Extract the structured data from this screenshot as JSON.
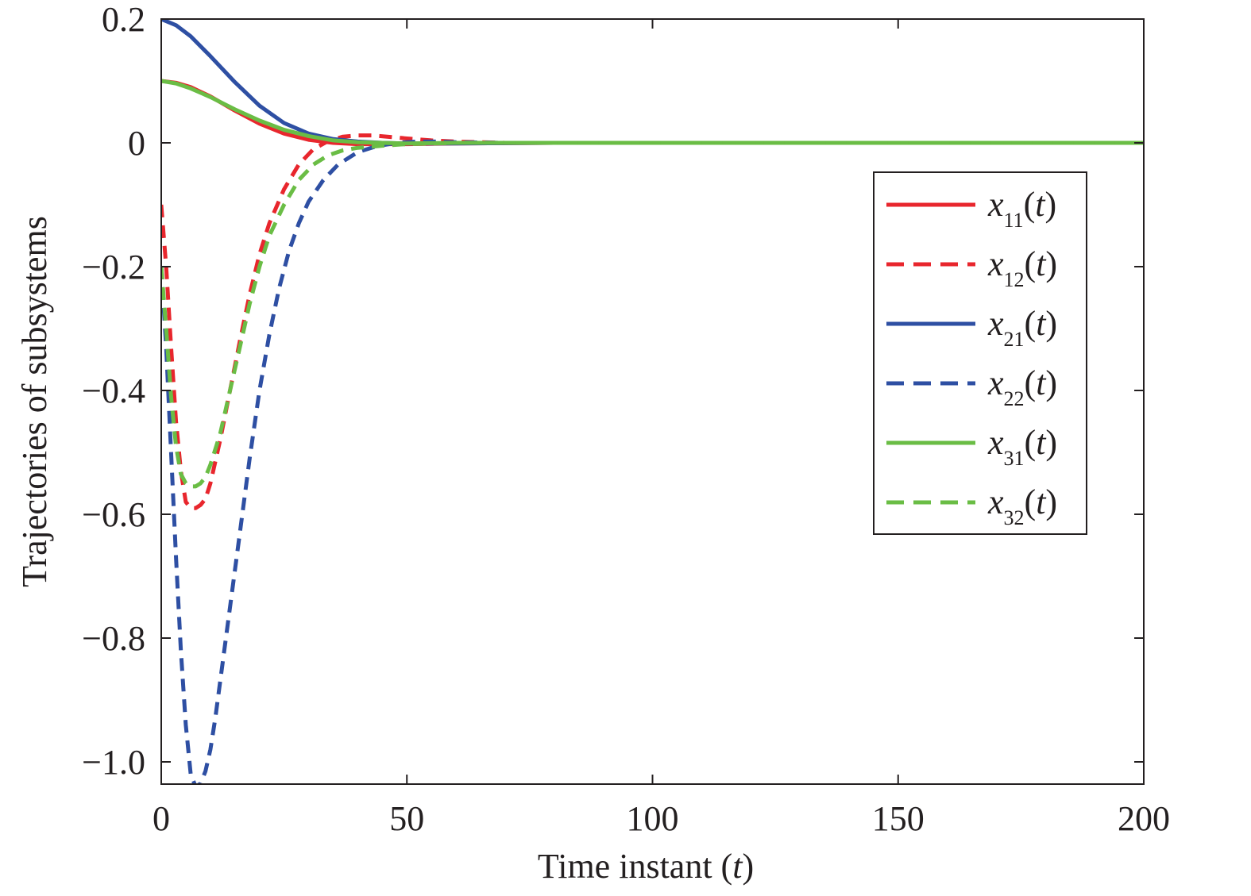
{
  "chart_data": {
    "type": "line",
    "title": "",
    "xlabel": "Time instant (",
    "xlabel_var": "t",
    "xlabel_close": ")",
    "ylabel": "Trajectories of subsystems",
    "xlim": [
      0,
      200
    ],
    "ylim": [
      -1.04,
      0.2
    ],
    "xticks": [
      0,
      50,
      100,
      150,
      200
    ],
    "xtick_labels": [
      "0",
      "50",
      "100",
      "150",
      "200"
    ],
    "yticks": [
      0.2,
      0,
      -0.2,
      -0.4,
      -0.6,
      -0.8,
      -1.0
    ],
    "ytick_labels": [
      "0.2",
      "0",
      "−0.2",
      "−0.4",
      "−0.6",
      "−0.8",
      "−1.0"
    ],
    "grid": false,
    "legend_position": "right",
    "series": [
      {
        "name": "x11(t)",
        "label_base": "x",
        "label_sub": "11",
        "label_tail": "(t)",
        "color": "#e8262d",
        "dashed": false,
        "x": [
          0,
          3,
          6,
          10,
          15,
          20,
          25,
          30,
          35,
          40,
          50,
          60,
          80,
          100,
          150,
          200
        ],
        "y": [
          0.1,
          0.097,
          0.09,
          0.075,
          0.052,
          0.031,
          0.015,
          0.005,
          0.0,
          -0.002,
          -0.002,
          -0.001,
          0,
          0,
          0,
          0
        ]
      },
      {
        "name": "x12(t)",
        "label_base": "x",
        "label_sub": "12",
        "label_tail": "(t)",
        "color": "#e8262d",
        "dashed": true,
        "x": [
          0,
          1,
          2,
          3,
          4,
          5,
          6,
          7,
          8,
          9,
          10,
          12,
          14,
          16,
          18,
          20,
          22,
          25,
          28,
          31,
          34,
          37,
          40,
          43,
          46,
          50,
          55,
          60,
          70,
          80,
          100,
          150,
          200
        ],
        "y": [
          -0.1,
          -0.2,
          -0.33,
          -0.45,
          -0.53,
          -0.58,
          -0.59,
          -0.59,
          -0.585,
          -0.575,
          -0.55,
          -0.48,
          -0.4,
          -0.32,
          -0.245,
          -0.18,
          -0.13,
          -0.075,
          -0.035,
          -0.01,
          0.003,
          0.01,
          0.012,
          0.012,
          0.01,
          0.007,
          0.004,
          0.002,
          0.0,
          0,
          0,
          0,
          0
        ]
      },
      {
        "name": "x21(t)",
        "label_base": "x",
        "label_sub": "21",
        "label_tail": "(t)",
        "color": "#2e4fa3",
        "dashed": false,
        "x": [
          0,
          3,
          6,
          10,
          15,
          20,
          25,
          30,
          35,
          40,
          45,
          50,
          60,
          80,
          100,
          150,
          200
        ],
        "y": [
          0.2,
          0.19,
          0.172,
          0.14,
          0.098,
          0.06,
          0.032,
          0.015,
          0.006,
          0.002,
          0.0,
          -0.001,
          -0.001,
          0,
          0,
          0,
          0
        ]
      },
      {
        "name": "x22(t)",
        "label_base": "x",
        "label_sub": "22",
        "label_tail": "(t)",
        "color": "#2e4fa3",
        "dashed": true,
        "x": [
          0,
          1,
          2,
          3,
          4,
          5,
          6,
          7,
          8,
          9,
          10,
          11,
          12,
          14,
          16,
          18,
          20,
          22,
          24,
          26,
          28,
          30,
          33,
          36,
          40,
          44,
          48,
          52,
          56,
          60,
          70,
          80,
          100,
          150,
          200
        ],
        "y": [
          -0.2,
          -0.33,
          -0.5,
          -0.67,
          -0.82,
          -0.94,
          -1.02,
          -1.04,
          -1.035,
          -1.015,
          -0.98,
          -0.93,
          -0.87,
          -0.75,
          -0.63,
          -0.51,
          -0.4,
          -0.31,
          -0.235,
          -0.175,
          -0.13,
          -0.095,
          -0.06,
          -0.035,
          -0.015,
          -0.005,
          0.0,
          0.002,
          0.002,
          0.001,
          0,
          0,
          0,
          0,
          0
        ]
      },
      {
        "name": "x31(t)",
        "label_base": "x",
        "label_sub": "31",
        "label_tail": "(t)",
        "color": "#6abd45",
        "dashed": false,
        "x": [
          0,
          3,
          6,
          10,
          15,
          20,
          25,
          30,
          35,
          40,
          45,
          50,
          60,
          80,
          100,
          150,
          200
        ],
        "y": [
          0.1,
          0.096,
          0.088,
          0.074,
          0.054,
          0.036,
          0.021,
          0.011,
          0.004,
          0.001,
          0.0,
          -0.001,
          0,
          0,
          0,
          0,
          0
        ]
      },
      {
        "name": "x32(t)",
        "label_base": "x",
        "label_sub": "32",
        "label_tail": "(t)",
        "color": "#6abd45",
        "dashed": true,
        "x": [
          0,
          1,
          2,
          3,
          4,
          5,
          6,
          7,
          8,
          9,
          10,
          12,
          14,
          16,
          18,
          20,
          22,
          25,
          28,
          31,
          34,
          37,
          40,
          43,
          46,
          50,
          55,
          60,
          70,
          80,
          100,
          150,
          200
        ],
        "y": [
          -0.2,
          -0.3,
          -0.41,
          -0.49,
          -0.535,
          -0.55,
          -0.555,
          -0.555,
          -0.55,
          -0.54,
          -0.52,
          -0.47,
          -0.4,
          -0.33,
          -0.26,
          -0.2,
          -0.15,
          -0.1,
          -0.06,
          -0.035,
          -0.02,
          -0.012,
          -0.008,
          -0.006,
          -0.004,
          -0.002,
          -0.001,
          0,
          0,
          0,
          0,
          0,
          0
        ]
      }
    ]
  }
}
